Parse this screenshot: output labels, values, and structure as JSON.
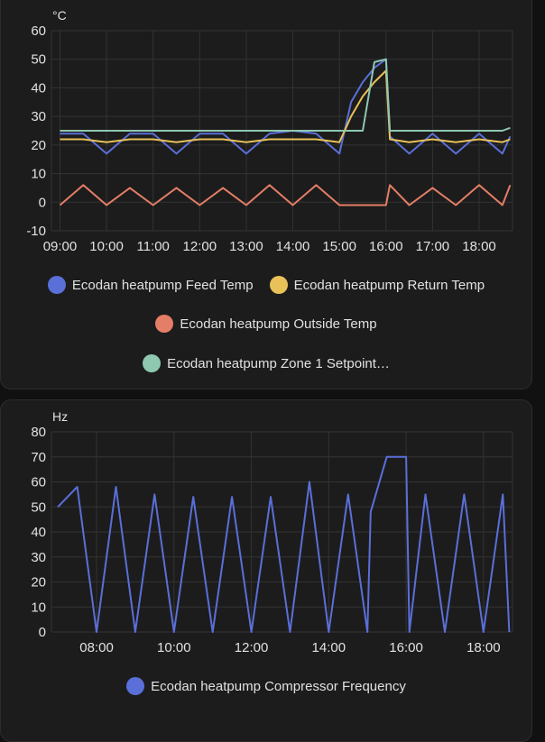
{
  "colors": {
    "feed": "#5a6fd8",
    "return": "#e8c158",
    "outside": "#e57e66",
    "setpoint": "#8ec8b0",
    "compressor": "#5a6fd8",
    "grid": "#333333",
    "card_bg": "#1c1c1c",
    "page_bg": "#111111"
  },
  "temperature_card": {
    "unit": "°C",
    "y_ticks": [
      "60",
      "50",
      "40",
      "30",
      "20",
      "10",
      "0",
      "-10"
    ],
    "x_ticks": [
      "09:00",
      "10:00",
      "11:00",
      "12:00",
      "13:00",
      "14:00",
      "15:00",
      "16:00",
      "17:00",
      "18:00"
    ],
    "legend": [
      {
        "label": "Ecodan heatpump Feed Temp",
        "color_key": "feed"
      },
      {
        "label": "Ecodan heatpump Return Temp",
        "color_key": "return"
      },
      {
        "label": "Ecodan heatpump Outside Temp",
        "color_key": "outside"
      },
      {
        "label": "Ecodan heatpump Zone 1 Setpoint…",
        "color_key": "setpoint"
      }
    ]
  },
  "compressor_card": {
    "unit": "Hz",
    "y_ticks": [
      "80",
      "70",
      "60",
      "50",
      "40",
      "30",
      "20",
      "10",
      "0"
    ],
    "x_ticks": [
      "08:00",
      "10:00",
      "12:00",
      "14:00",
      "16:00",
      "18:00"
    ],
    "legend": [
      {
        "label": "Ecodan heatpump Compressor Frequency",
        "color_key": "compressor"
      }
    ]
  },
  "chart_data": [
    {
      "type": "line",
      "title": "",
      "xlabel": "",
      "ylabel": "°C",
      "ylim": [
        -10,
        60
      ],
      "xlim": [
        "08:49",
        "18:43"
      ],
      "grid": true,
      "legend_position": "bottom",
      "x": [
        "09:00",
        "09:30",
        "10:00",
        "10:30",
        "11:00",
        "11:30",
        "12:00",
        "12:30",
        "13:00",
        "13:30",
        "14:00",
        "14:30",
        "15:00",
        "15:15",
        "15:30",
        "15:45",
        "16:00",
        "16:05",
        "16:30",
        "17:00",
        "17:30",
        "18:00",
        "18:30",
        "18:40"
      ],
      "series": [
        {
          "name": "Ecodan heatpump Feed Temp",
          "values": [
            24,
            24,
            17,
            24,
            24,
            17,
            24,
            24,
            17,
            24,
            25,
            24,
            17,
            35,
            42,
            47,
            50,
            23,
            17,
            24,
            17,
            24,
            17,
            23
          ]
        },
        {
          "name": "Ecodan heatpump Return Temp",
          "values": [
            22,
            22,
            21,
            22,
            22,
            21,
            22,
            22,
            21,
            22,
            22,
            22,
            21,
            30,
            37,
            42,
            46,
            22,
            21,
            22,
            21,
            22,
            21,
            22
          ]
        },
        {
          "name": "Ecodan heatpump Outside Temp",
          "values": [
            -1,
            6,
            -1,
            5,
            -1,
            5,
            -1,
            5,
            -1,
            6,
            -1,
            6,
            -1,
            -1,
            -1,
            -1,
            -1,
            6,
            -1,
            5,
            -1,
            6,
            -1,
            6
          ]
        },
        {
          "name": "Ecodan heatpump Zone 1 Setpoint…",
          "values": [
            25,
            25,
            25,
            25,
            25,
            25,
            25,
            25,
            25,
            25,
            25,
            25,
            25,
            25,
            25,
            49,
            50,
            25,
            25,
            25,
            25,
            25,
            25,
            26
          ]
        }
      ]
    },
    {
      "type": "line",
      "title": "",
      "xlabel": "",
      "ylabel": "Hz",
      "ylim": [
        0,
        80
      ],
      "xlim": [
        "06:50",
        "18:45"
      ],
      "grid": true,
      "legend_position": "bottom",
      "x": [
        "07:00",
        "07:30",
        "08:00",
        "08:30",
        "09:00",
        "09:30",
        "10:00",
        "10:30",
        "11:00",
        "11:30",
        "12:00",
        "12:30",
        "13:00",
        "13:30",
        "14:00",
        "14:30",
        "15:00",
        "15:05",
        "15:30",
        "16:00",
        "16:05",
        "16:30",
        "17:00",
        "17:30",
        "18:00",
        "18:30",
        "18:40"
      ],
      "series": [
        {
          "name": "Ecodan heatpump Compressor Frequency",
          "values": [
            50,
            58,
            0,
            58,
            0,
            55,
            0,
            54,
            0,
            54,
            0,
            54,
            0,
            60,
            0,
            55,
            0,
            48,
            70,
            70,
            0,
            55,
            0,
            55,
            0,
            55,
            0
          ]
        }
      ]
    }
  ]
}
